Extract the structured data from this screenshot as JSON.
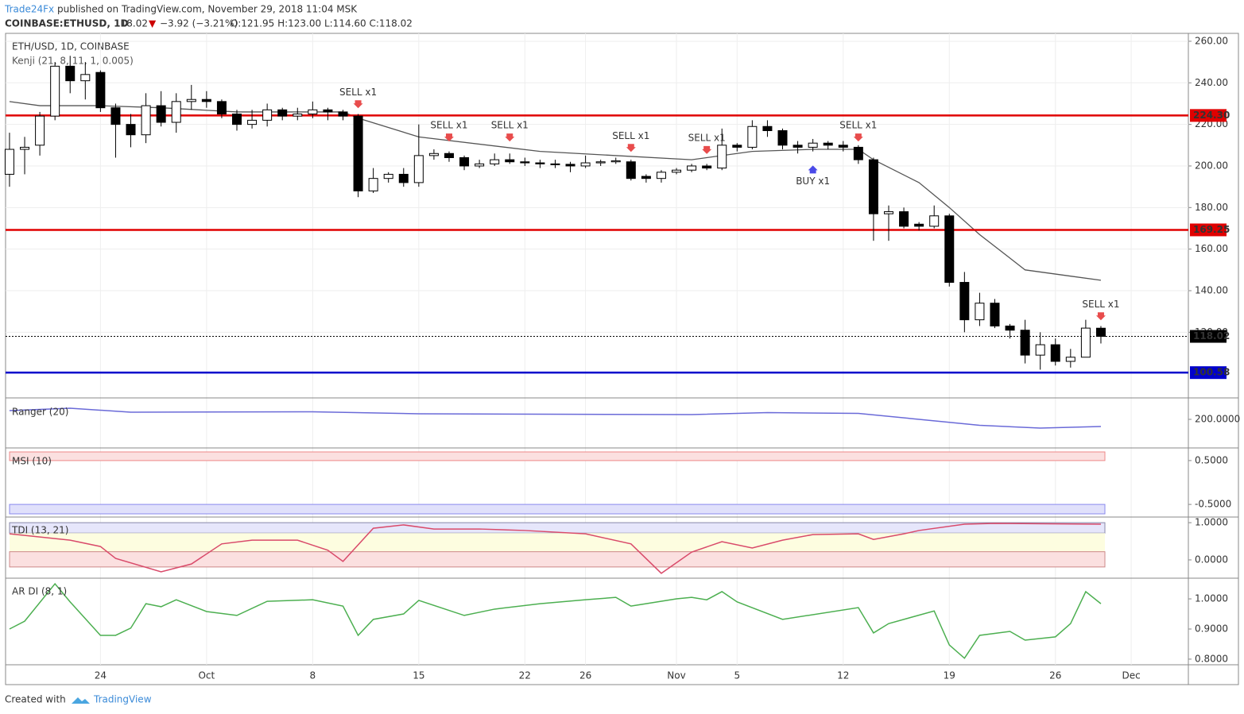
{
  "header": {
    "author": "Trade24Fx",
    "published": "published on TradingView.com, November 29, 2018 11:04 MSK",
    "symbol": "COINBASE:ETHUSD, 1D",
    "last": "118.02",
    "arrow": "▼",
    "change": "−3.92 (−3.21%)",
    "ohlc": "O:121.95 H:123.00 L:114.60 C:118.02"
  },
  "footer": {
    "created": "Created with",
    "brand": "TradingView"
  },
  "chart_data": {
    "type": "candlestick",
    "title": "ETH/USD, 1D, COINBASE",
    "subtitle": "Kenji (21, 8, 11, 1, 0.005)",
    "up_color": "#ffffff",
    "down_color": "#000000",
    "grid": true,
    "open": [
      196,
      208,
      210,
      224,
      248,
      241,
      245,
      228,
      220,
      215,
      229,
      221,
      231,
      232,
      231,
      225,
      220,
      222,
      227,
      224,
      225,
      227,
      226,
      224,
      188,
      194,
      196,
      192,
      205,
      206,
      204,
      200,
      201,
      203,
      202,
      201.5,
      201,
      200.8,
      200,
      201.5,
      202,
      202,
      195,
      194,
      197,
      198,
      200,
      199,
      210,
      209,
      219,
      217,
      210,
      209,
      211,
      210,
      209,
      203,
      177,
      178,
      172,
      171,
      176,
      144,
      126,
      134,
      123,
      121,
      109,
      114,
      106,
      108,
      121.95
    ],
    "high": [
      216,
      214,
      226,
      250,
      253,
      250,
      246,
      230,
      225,
      235,
      236,
      235,
      239,
      236,
      232,
      227,
      227,
      230,
      228,
      228,
      231,
      228,
      227,
      225,
      199,
      197,
      199,
      220,
      208,
      207,
      205,
      203,
      206,
      206,
      204,
      203,
      203,
      202,
      205,
      203,
      204,
      203,
      196,
      198,
      199,
      201,
      201,
      218,
      211,
      222,
      222,
      218,
      212,
      213,
      212,
      212,
      210,
      204,
      181,
      180,
      173,
      181,
      177,
      149,
      139,
      136,
      124,
      126,
      120,
      117,
      112,
      126,
      123
    ],
    "low": [
      190,
      196,
      205,
      222,
      235,
      232,
      226,
      204,
      209,
      211,
      219,
      216,
      227,
      228,
      223,
      217,
      218,
      219,
      222,
      222,
      223,
      222,
      222,
      185,
      187,
      192,
      190,
      190,
      203,
      202,
      198,
      199,
      200,
      201,
      200,
      199,
      199,
      197,
      199,
      200,
      201,
      193,
      192,
      192,
      196,
      197,
      198,
      198,
      207,
      208,
      214,
      208,
      206,
      207,
      208,
      207,
      201,
      164,
      164,
      170,
      169,
      170,
      142,
      120,
      123,
      122,
      117,
      105,
      102,
      104,
      103,
      108,
      114.6
    ],
    "close": [
      208,
      209,
      224,
      248,
      241,
      244,
      228,
      220,
      215,
      229,
      221,
      231,
      232,
      231,
      225,
      220,
      222,
      227,
      224,
      225,
      227,
      226,
      224,
      188,
      194,
      196,
      192,
      205,
      206,
      204,
      200,
      201,
      203,
      202,
      201.5,
      201,
      200.8,
      200,
      201.5,
      202,
      202.5,
      194,
      194,
      197,
      198,
      200,
      199,
      210,
      209,
      219,
      217,
      210,
      209,
      211,
      210,
      209,
      203,
      177,
      178,
      171,
      171,
      176,
      144,
      126,
      134,
      123,
      121,
      109,
      114,
      106,
      108,
      122,
      118.02
    ],
    "xlim": [
      -0.26,
      77.77
    ],
    "xticks": [
      {
        "value": 6,
        "label": "24"
      },
      {
        "value": 13,
        "label": "Oct"
      },
      {
        "value": 20,
        "label": "8"
      },
      {
        "value": 27,
        "label": "15"
      },
      {
        "value": 34,
        "label": "22"
      },
      {
        "value": 38,
        "label": "26"
      },
      {
        "value": 44,
        "label": "Nov"
      },
      {
        "value": 48,
        "label": "5"
      },
      {
        "value": 55,
        "label": "12"
      },
      {
        "value": 62,
        "label": "19"
      },
      {
        "value": 69,
        "label": "26"
      },
      {
        "value": 74,
        "label": "Dec"
      }
    ],
    "ylim": [
      88.8,
      263.8
    ],
    "yticks": [
      {
        "value": 120,
        "label": "120.00"
      },
      {
        "value": 140,
        "label": "140.00"
      },
      {
        "value": 160,
        "label": "160.00"
      },
      {
        "value": 180,
        "label": "180.00"
      },
      {
        "value": 200,
        "label": "200.00"
      },
      {
        "value": 220,
        "label": "220.00"
      },
      {
        "value": 240,
        "label": "240.00"
      },
      {
        "value": 260,
        "label": "260.00"
      }
    ],
    "kenji": {
      "color": "#555555",
      "x": [
        0,
        2,
        6,
        10,
        15,
        22,
        23,
        27,
        35,
        45,
        49,
        53,
        56,
        57,
        60,
        62,
        64,
        67,
        70,
        72
      ],
      "values": [
        231,
        229,
        229,
        228,
        226,
        226,
        223,
        214,
        207,
        203,
        207,
        208,
        208,
        203,
        192,
        180,
        167,
        150,
        147,
        145
      ]
    },
    "levels": [
      {
        "value": 224.3,
        "label": "224.30",
        "color": "#e00000",
        "style": "solid"
      },
      {
        "value": 169.25,
        "color": "#e00000",
        "style": "solid"
      },
      {
        "value": 118.02,
        "color": "#000000",
        "style": "dotted"
      },
      {
        "value": 100.58,
        "color": "#0000cc",
        "style": "solid"
      }
    ],
    "signals": [
      {
        "label": "SELL x1",
        "x": 23,
        "price": 227,
        "color": "#e84c4c",
        "dir": "down"
      },
      {
        "label": "SELL x1",
        "x": 29,
        "price": 211,
        "color": "#e84c4c",
        "dir": "down"
      },
      {
        "label": "SELL x1",
        "x": 33,
        "price": 211,
        "color": "#e84c4c",
        "dir": "down"
      },
      {
        "label": "SELL x1",
        "x": 41,
        "price": 206,
        "color": "#e84c4c",
        "dir": "down"
      },
      {
        "label": "SELL x1",
        "x": 46,
        "price": 205,
        "color": "#e84c4c",
        "dir": "down"
      },
      {
        "label": "SELL x1",
        "x": 56,
        "price": 211,
        "color": "#e84c4c",
        "dir": "down"
      },
      {
        "label": "SELL x1",
        "x": 72,
        "price": 125,
        "color": "#e84c4c",
        "dir": "down"
      },
      {
        "label": "BUY x1",
        "x": 53,
        "price": 201,
        "color": "#4a4ae8",
        "dir": "up"
      }
    ],
    "panes": [
      {
        "title": "Ranger (20)",
        "ylim": [
          130,
          250
        ],
        "yticks": [
          {
            "value": 200,
            "label": "200.0000"
          }
        ],
        "color": "#6a6ad8",
        "x": [
          0,
          4,
          8,
          20,
          27,
          35,
          45,
          50,
          56,
          60,
          64,
          68,
          72
        ],
        "values": [
          222,
          228,
          218,
          219,
          214,
          213,
          212,
          217,
          215,
          200,
          185,
          178,
          182
        ]
      },
      {
        "title": "MSI (10)",
        "ylim": [
          -0.77,
          0.77
        ],
        "yticks": [
          {
            "value": 0.5,
            "label": "0.5000"
          },
          {
            "value": -0.5,
            "label": "-0.5000"
          }
        ],
        "color": "#e05050",
        "x": [],
        "values": []
      },
      {
        "title": "TDI (13, 21)",
        "ylim": [
          -0.47,
          1.13
        ],
        "yticks": [
          {
            "value": 1,
            "label": "1.0000"
          },
          {
            "value": 0,
            "label": "0.0000"
          }
        ],
        "color": "#d94a6a",
        "x": [
          0,
          4,
          6,
          7,
          10,
          12,
          14,
          16,
          19,
          21,
          22,
          24,
          26,
          28,
          31,
          34,
          38,
          41,
          43,
          45,
          47,
          49,
          51,
          53,
          56,
          57,
          59,
          60,
          63,
          65,
          72
        ],
        "values": [
          0.7,
          0.53,
          0.36,
          0.04,
          -0.32,
          -0.11,
          0.43,
          0.53,
          0.53,
          0.26,
          -0.04,
          0.85,
          0.94,
          0.83,
          0.83,
          0.79,
          0.7,
          0.43,
          -0.36,
          0.21,
          0.49,
          0.32,
          0.53,
          0.68,
          0.7,
          0.55,
          0.7,
          0.79,
          0.96,
          0.98,
          0.96
        ]
      },
      {
        "title": "AR DI (8, 1)",
        "ylim": [
          0.784,
          1.066
        ],
        "yticks": [
          {
            "value": 1,
            "label": "1.0000"
          },
          {
            "value": 0.9,
            "label": "0.9000"
          },
          {
            "value": 0.8,
            "label": "0.8000"
          }
        ],
        "color": "#4caf50",
        "x": [
          0,
          1,
          3,
          4,
          6,
          7,
          8,
          9,
          10,
          11,
          13,
          15,
          17,
          20,
          22,
          23,
          24,
          26,
          27,
          30,
          32,
          35,
          38,
          40,
          41,
          44,
          45,
          46,
          47,
          48,
          51,
          56,
          57,
          58,
          61,
          62,
          63,
          64,
          66,
          67,
          69,
          70,
          71,
          72
        ],
        "values": [
          0.9,
          0.926,
          1.05,
          0.99,
          0.879,
          0.879,
          0.903,
          0.984,
          0.974,
          0.997,
          0.958,
          0.945,
          0.992,
          0.997,
          0.976,
          0.879,
          0.932,
          0.95,
          0.995,
          0.945,
          0.966,
          0.984,
          0.997,
          1.005,
          0.976,
          1.0,
          1.005,
          0.997,
          1.024,
          0.99,
          0.932,
          0.971,
          0.887,
          0.918,
          0.96,
          0.847,
          0.803,
          0.879,
          0.892,
          0.863,
          0.874,
          0.918,
          1.024,
          0.984
        ]
      }
    ]
  }
}
